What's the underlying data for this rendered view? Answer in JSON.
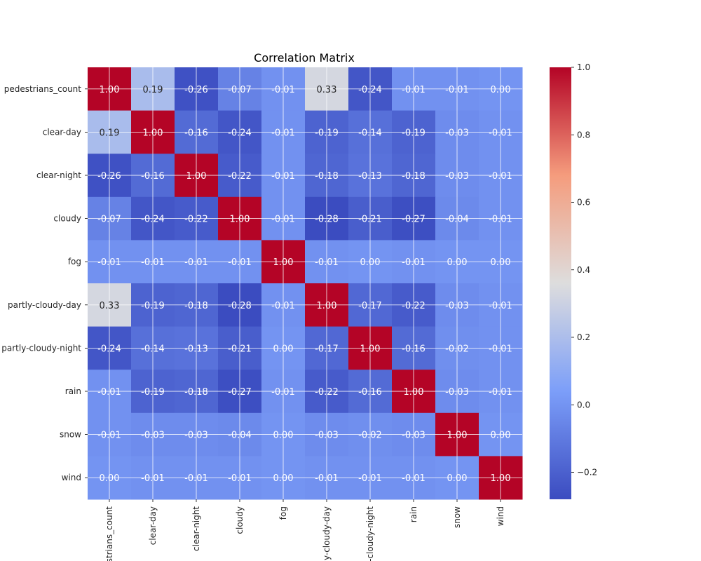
{
  "chart_data": {
    "type": "heatmap",
    "title": "Correlation Matrix",
    "row_labels": [
      "pedestrians_count",
      "clear-day",
      "clear-night",
      "cloudy",
      "fog",
      "partly-cloudy-day",
      "partly-cloudy-night",
      "rain",
      "snow",
      "wind"
    ],
    "col_labels_displayed": [
      "strians_count",
      "clear-day",
      "clear-night",
      "cloudy",
      "fog",
      "y-cloudy-day",
      "-cloudy-night",
      "rain",
      "snow",
      "wind"
    ],
    "values": [
      [
        1.0,
        0.19,
        -0.26,
        -0.07,
        -0.01,
        0.33,
        -0.24,
        -0.01,
        -0.01,
        -0.0
      ],
      [
        0.19,
        1.0,
        -0.16,
        -0.24,
        -0.01,
        -0.19,
        -0.14,
        -0.19,
        -0.03,
        -0.01
      ],
      [
        -0.26,
        -0.16,
        1.0,
        -0.22,
        -0.01,
        -0.18,
        -0.13,
        -0.18,
        -0.03,
        -0.01
      ],
      [
        -0.07,
        -0.24,
        -0.22,
        1.0,
        -0.01,
        -0.28,
        -0.21,
        -0.27,
        -0.04,
        -0.01
      ],
      [
        -0.01,
        -0.01,
        -0.01,
        -0.01,
        1.0,
        -0.01,
        -0.0,
        -0.01,
        -0.0,
        -0.0
      ],
      [
        0.33,
        -0.19,
        -0.18,
        -0.28,
        -0.01,
        1.0,
        -0.17,
        -0.22,
        -0.03,
        -0.01
      ],
      [
        -0.24,
        -0.14,
        -0.13,
        -0.21,
        -0.0,
        -0.17,
        1.0,
        -0.16,
        -0.02,
        -0.01
      ],
      [
        -0.01,
        -0.19,
        -0.18,
        -0.27,
        -0.01,
        -0.22,
        -0.16,
        1.0,
        -0.03,
        -0.01
      ],
      [
        -0.01,
        -0.03,
        -0.03,
        -0.04,
        -0.0,
        -0.03,
        -0.02,
        -0.03,
        1.0,
        -0.0
      ],
      [
        -0.0,
        -0.01,
        -0.01,
        -0.01,
        -0.0,
        -0.01,
        -0.01,
        -0.01,
        -0.0,
        1.0
      ]
    ],
    "colormap": "coolwarm",
    "colorbar": {
      "min": -0.28,
      "max": 1.0,
      "ticks": [
        1.0,
        0.8,
        0.6,
        0.4,
        0.2,
        0.0,
        -0.2
      ],
      "tick_labels": [
        "1.0",
        "0.8",
        "0.6",
        "0.4",
        "0.2",
        "0.0",
        "−0.2"
      ]
    },
    "grid": true,
    "annotations": true
  }
}
